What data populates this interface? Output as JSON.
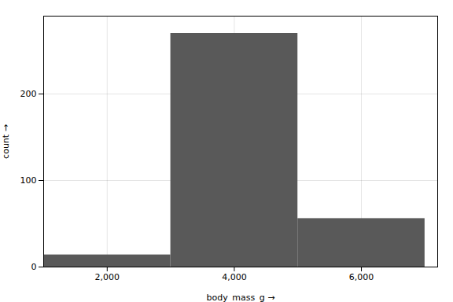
{
  "chart_data": {
    "type": "histogram",
    "bins": [
      1000,
      3000,
      5000,
      7000
    ],
    "values": [
      14,
      270,
      56
    ],
    "color": "#595959",
    "xlabel": "body_mass_g",
    "ylabel": "count",
    "xlim": [
      1000,
      7200
    ],
    "ylim": [
      0,
      290
    ],
    "xticks": [
      {
        "value": 2000,
        "label": "2,000"
      },
      {
        "value": 4000,
        "label": "4,000"
      },
      {
        "value": 6000,
        "label": "6,000"
      }
    ],
    "yticks": [
      0,
      100,
      200
    ],
    "grid": true
  }
}
